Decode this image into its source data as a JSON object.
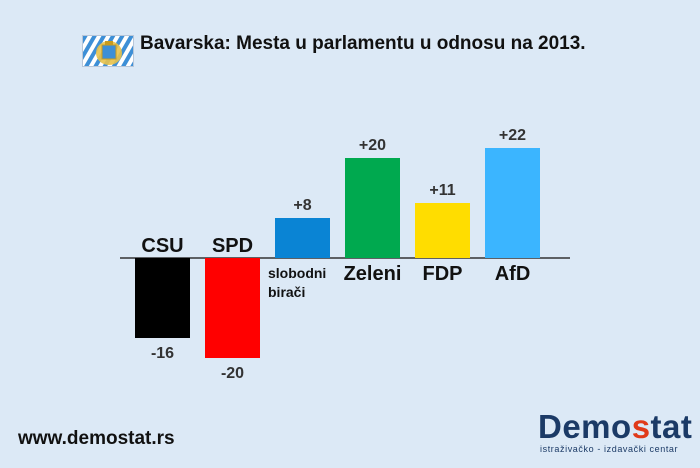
{
  "header": {
    "title": "Bavarska: Mesta u parlamentu u odnosu na 2013."
  },
  "footer": {
    "url": "www.demostat.rs"
  },
  "logo": {
    "name_part1": "Demo",
    "name_o": "s",
    "name_part2": "tat",
    "subtitle": "istraživačko - izdavački centar"
  },
  "colors": {
    "background": "#dce9f6",
    "logo_blue": "#1b3a66",
    "logo_red": "#e03a1a"
  },
  "chart_data": {
    "type": "bar",
    "title": "Bavarska: Mesta u parlamentu u odnosu na 2013.",
    "categories": [
      "CSU",
      "SPD",
      "slobodni birači",
      "Zeleni",
      "FDP",
      "AfD"
    ],
    "category_lines": [
      [
        "CSU"
      ],
      [
        "SPD"
      ],
      [
        "slobodni",
        "birači"
      ],
      [
        "Zeleni"
      ],
      [
        "FDP"
      ],
      [
        "AfD"
      ]
    ],
    "values": [
      -16,
      -20,
      8,
      20,
      11,
      22
    ],
    "value_labels": [
      "-16",
      "-20",
      "+8",
      "+20",
      "+11",
      "+22"
    ],
    "colors": [
      "#000000",
      "#ff0000",
      "#0a84d4",
      "#00a94f",
      "#ffdd00",
      "#3bb5ff"
    ],
    "ylim": [
      -22,
      24
    ],
    "xlabel": "",
    "ylabel": "",
    "grid": false,
    "legend": "none"
  }
}
